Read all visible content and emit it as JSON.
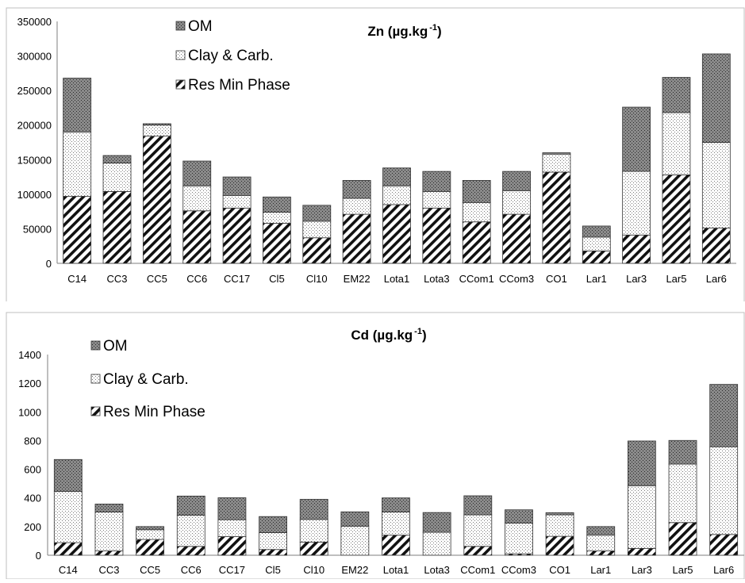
{
  "chart_data": [
    {
      "type": "bar",
      "stacked": true,
      "title": "Zn (µg.kg",
      "title_sup": "-1",
      "title_suffix": ")",
      "categories": [
        "C14",
        "CC3",
        "CC5",
        "CC6",
        "CC17",
        "Cl5",
        "Cl10",
        "EM22",
        "Lota1",
        "Lota3",
        "CCom1",
        "CCom3",
        "CO1",
        "Lar1",
        "Lar3",
        "Lar5",
        "Lar6"
      ],
      "series": [
        {
          "name": "Res Min Phase",
          "pattern": "hatch",
          "values": [
            97000,
            104000,
            184000,
            76000,
            80000,
            58000,
            37000,
            71000,
            85000,
            80000,
            60000,
            71000,
            132000,
            18000,
            41000,
            128000,
            51000
          ]
        },
        {
          "name": "Clay & Carb.",
          "pattern": "dots-light",
          "values": [
            93000,
            41000,
            16000,
            36000,
            18000,
            16000,
            24000,
            23000,
            27000,
            24000,
            28000,
            34000,
            26000,
            20000,
            92000,
            90000,
            124000
          ]
        },
        {
          "name": "OM",
          "pattern": "dots-dark",
          "values": [
            78000,
            11000,
            2000,
            36000,
            27000,
            22000,
            23000,
            26000,
            26000,
            29000,
            32000,
            28000,
            2000,
            16000,
            93000,
            51000,
            128000
          ]
        }
      ],
      "ylim": [
        0,
        350000
      ],
      "yticks": [
        0,
        50000,
        100000,
        150000,
        200000,
        250000,
        300000,
        350000
      ],
      "legend_order": [
        "OM",
        "Clay & Carb.",
        "Res Min Phase"
      ],
      "legend_position": "top-left",
      "grid": false
    },
    {
      "type": "bar",
      "stacked": true,
      "title": "Cd  (µg.kg",
      "title_sup": "-1",
      "title_suffix": ")",
      "categories": [
        "C14",
        "CC3",
        "CC5",
        "CC6",
        "CC17",
        "Cl5",
        "Cl10",
        "EM22",
        "Lota1",
        "Lota3",
        "CCom1",
        "CCom3",
        "CO1",
        "Lar1",
        "Lar3",
        "Lar5",
        "Lar6"
      ],
      "series": [
        {
          "name": "Res Min Phase",
          "pattern": "hatch",
          "values": [
            88,
            30,
            110,
            62,
            130,
            40,
            92,
            0,
            140,
            0,
            62,
            10,
            132,
            30,
            48,
            228,
            145
          ]
        },
        {
          "name": "Clay & Carb.",
          "pattern": "dots-light",
          "values": [
            358,
            272,
            68,
            218,
            118,
            118,
            158,
            203,
            162,
            160,
            220,
            215,
            150,
            110,
            437,
            408,
            612
          ]
        },
        {
          "name": "OM",
          "pattern": "dots-dark",
          "values": [
            222,
            55,
            22,
            133,
            153,
            112,
            140,
            100,
            98,
            138,
            133,
            92,
            15,
            60,
            312,
            165,
            435
          ]
        }
      ],
      "ylim": [
        0,
        1400
      ],
      "yticks": [
        0,
        200,
        400,
        600,
        800,
        1000,
        1200,
        1400
      ],
      "legend_order": [
        "OM",
        "Clay & Carb.",
        "Res Min Phase"
      ],
      "legend_position": "top-left",
      "grid": false
    }
  ]
}
